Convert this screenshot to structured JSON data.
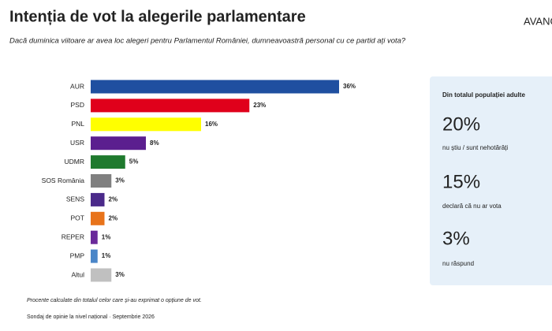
{
  "chart_data": {
    "type": "bar",
    "orientation": "horizontal",
    "title": "Intenția de vot la alegerile parlamentare",
    "subtitle": "Dacă duminica viitoare ar avea loc alegeri pentru Parlamentul României, dumneavoastră personal cu ce partid ați vota?",
    "categories": [
      "AUR",
      "PSD",
      "PNL",
      "USR",
      "UDMR",
      "SOS România",
      "SENS",
      "POT",
      "REPER",
      "PMP",
      "Altul"
    ],
    "values": [
      36,
      23,
      16,
      8,
      5,
      3,
      2,
      2,
      1,
      1,
      3
    ],
    "value_labels": [
      "36%",
      "23%",
      "16%",
      "8%",
      "5%",
      "3%",
      "2%",
      "2%",
      "1%",
      "1%",
      "3%"
    ],
    "colors": [
      "#1f4fa0",
      "#e0001b",
      "#ffff00",
      "#5b1f8f",
      "#1f7a2e",
      "#808080",
      "#4b2a8a",
      "#e8731a",
      "#6a2a9a",
      "#4a86c8",
      "#c0c0c0"
    ],
    "note": "Procente calculate din totalul celor care și-au exprimat o opțiune de vot.",
    "source": "Sondaj de opinie la nivel național · Septembrie 2026"
  },
  "panel": {
    "heading": "Din totalul populației adulte",
    "items": [
      {
        "value": "20%",
        "label": "nu știu / sunt nehotărâți"
      },
      {
        "value": "15%",
        "label": "declară că nu ar vota"
      },
      {
        "value": "3%",
        "label": "nu răspund"
      }
    ]
  },
  "logo": "AVANG"
}
